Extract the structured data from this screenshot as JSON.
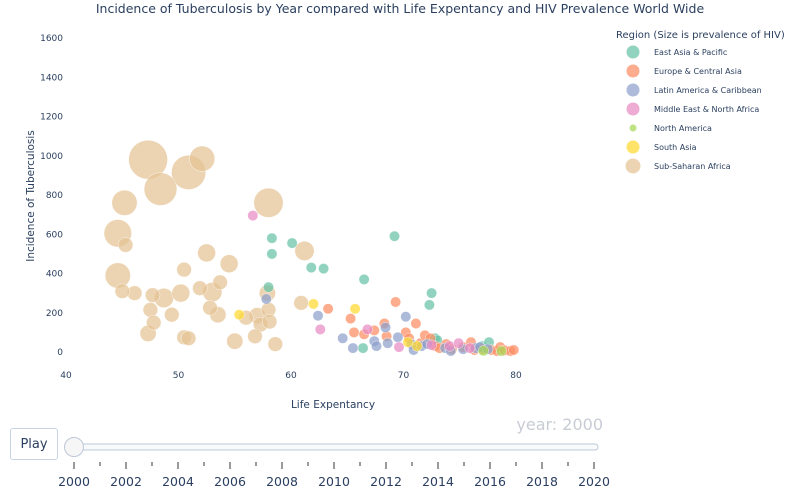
{
  "controls": {
    "play_label": "Play",
    "current_year_label": "year: 2000"
  },
  "slider": {
    "years": [
      "2000",
      "2002",
      "2004",
      "2006",
      "2008",
      "2010",
      "2012",
      "2014",
      "2016",
      "2018",
      "2020"
    ],
    "value": "2000"
  },
  "colors": {
    "East Asia & Pacific": "#66c2a5",
    "Europe & Central Asia": "#fc8d62",
    "Latin America & Caribbean": "#8da0cb",
    "Middle East & North Africa": "#e78ac3",
    "North America": "#a6d854",
    "South Asia": "#ffd92f",
    "Sub-Saharan Africa": "#e5c494"
  },
  "chart_data": {
    "type": "scatter",
    "title": "Incidence of Tuberculosis by Year compared with Life Expentancy and HIV Prevalence World Wide",
    "xlabel": "Life Expentancy",
    "ylabel": "Incidence of Tuberculosis",
    "xlim": [
      40,
      80
    ],
    "ylim": [
      -100,
      1650
    ],
    "xticks": [
      40,
      50,
      60,
      70,
      80
    ],
    "yticks": [
      0,
      200,
      400,
      600,
      800,
      1000,
      1200,
      1400,
      1600
    ],
    "legend_title": "Region (Size is prevalence of HIV)",
    "legend_position": "right",
    "frame_year": 2000,
    "series": [
      {
        "name": "East Asia & Pacific",
        "points": [
          [
            58.3,
            580,
            1
          ],
          [
            60.1,
            555,
            1
          ],
          [
            61.8,
            430,
            1
          ],
          [
            62.9,
            425,
            1
          ],
          [
            58.3,
            500,
            1
          ],
          [
            58.0,
            330,
            1
          ],
          [
            66.5,
            370,
            1
          ],
          [
            69.2,
            590,
            1
          ],
          [
            72.5,
            300,
            1
          ],
          [
            72.3,
            240,
            1
          ],
          [
            66.4,
            20,
            1
          ],
          [
            72.8,
            70,
            1
          ],
          [
            73.0,
            60,
            1
          ],
          [
            77.0,
            30,
            1
          ],
          [
            77.6,
            50,
            1
          ]
        ]
      },
      {
        "name": "Europe & Central Asia",
        "points": [
          [
            63.3,
            220,
            1
          ],
          [
            65.3,
            170,
            1
          ],
          [
            65.6,
            100,
            1
          ],
          [
            66.5,
            90,
            1
          ],
          [
            67.4,
            110,
            1
          ],
          [
            68.3,
            145,
            1
          ],
          [
            68.5,
            80,
            1
          ],
          [
            69.3,
            255,
            1
          ],
          [
            70.2,
            100,
            1
          ],
          [
            70.5,
            70,
            1
          ],
          [
            71.1,
            145,
            1
          ],
          [
            71.5,
            45,
            1
          ],
          [
            71.9,
            85,
            1
          ],
          [
            72.4,
            70,
            1
          ],
          [
            72.8,
            30,
            1
          ],
          [
            73.2,
            20,
            1
          ],
          [
            73.8,
            40,
            1
          ],
          [
            74.3,
            15,
            1
          ],
          [
            75.3,
            25,
            1
          ],
          [
            76.0,
            50,
            1
          ],
          [
            76.3,
            10,
            1
          ],
          [
            77.0,
            15,
            1
          ],
          [
            77.8,
            10,
            1
          ],
          [
            78.3,
            5,
            1
          ],
          [
            78.6,
            25,
            1
          ],
          [
            79.0,
            8,
            1
          ],
          [
            79.5,
            5,
            1
          ],
          [
            79.8,
            10,
            1
          ]
        ]
      },
      {
        "name": "Latin America & Caribbean",
        "points": [
          [
            57.8,
            270,
            1
          ],
          [
            62.4,
            185,
            1
          ],
          [
            64.6,
            70,
            1
          ],
          [
            65.5,
            20,
            1
          ],
          [
            67.4,
            55,
            1
          ],
          [
            67.6,
            30,
            1
          ],
          [
            68.4,
            125,
            1
          ],
          [
            68.6,
            45,
            1
          ],
          [
            69.5,
            75,
            1
          ],
          [
            70.2,
            180,
            1
          ],
          [
            70.7,
            40,
            1
          ],
          [
            70.9,
            10,
            1
          ],
          [
            71.6,
            30,
            1
          ],
          [
            72.1,
            40,
            1
          ],
          [
            73.7,
            20,
            1
          ],
          [
            74.2,
            5,
            1
          ],
          [
            75.3,
            15,
            1
          ],
          [
            76.4,
            20,
            1
          ],
          [
            76.8,
            25,
            1
          ],
          [
            77.5,
            15,
            1
          ]
        ]
      },
      {
        "name": "Middle East & North Africa",
        "points": [
          [
            56.6,
            695,
            1
          ],
          [
            62.6,
            115,
            1
          ],
          [
            66.8,
            115,
            1
          ],
          [
            69.6,
            25,
            1
          ],
          [
            72.5,
            35,
            1
          ],
          [
            74.1,
            30,
            1
          ],
          [
            74.9,
            45,
            1
          ],
          [
            75.9,
            20,
            1
          ]
        ]
      },
      {
        "name": "North America",
        "points": [
          [
            77.1,
            6,
            1
          ],
          [
            78.7,
            5,
            1
          ]
        ]
      },
      {
        "name": "South Asia",
        "points": [
          [
            55.4,
            190,
            1
          ],
          [
            62.0,
            245,
            1
          ],
          [
            65.7,
            220,
            1
          ],
          [
            70.4,
            50,
            1
          ],
          [
            71.2,
            30,
            1
          ]
        ]
      },
      {
        "name": "Sub-Saharan Africa",
        "points": [
          [
            47.3,
            980,
            14
          ],
          [
            48.4,
            830,
            10
          ],
          [
            50.9,
            915,
            11
          ],
          [
            52.1,
            985,
            6
          ],
          [
            45.2,
            760,
            6
          ],
          [
            58.0,
            760,
            8
          ],
          [
            44.6,
            605,
            7
          ],
          [
            45.3,
            545,
            2
          ],
          [
            44.6,
            390,
            6
          ],
          [
            48.7,
            275,
            3.5
          ],
          [
            46.1,
            300,
            2
          ],
          [
            45.0,
            310,
            2
          ],
          [
            47.7,
            290,
            2
          ],
          [
            47.5,
            215,
            2
          ],
          [
            47.8,
            150,
            2
          ],
          [
            47.3,
            95,
            2.5
          ],
          [
            50.2,
            300,
            3
          ],
          [
            50.5,
            420,
            2
          ],
          [
            51.9,
            325,
            2
          ],
          [
            52.5,
            505,
            3
          ],
          [
            54.5,
            450,
            3
          ],
          [
            53.7,
            355,
            2
          ],
          [
            52.8,
            225,
            2
          ],
          [
            53.0,
            305,
            3.5
          ],
          [
            53.5,
            190,
            2.5
          ],
          [
            49.4,
            190,
            2
          ],
          [
            50.5,
            75,
            2
          ],
          [
            50.9,
            70,
            2
          ],
          [
            55.0,
            55,
            2.5
          ],
          [
            56.0,
            175,
            2
          ],
          [
            57.0,
            185,
            2.5
          ],
          [
            57.3,
            140,
            2
          ],
          [
            58.6,
            40,
            2
          ],
          [
            56.8,
            80,
            2
          ],
          [
            58.0,
            215,
            2
          ],
          [
            58.1,
            155,
            2
          ],
          [
            57.9,
            300,
            2.5
          ],
          [
            61.2,
            515,
            3.5
          ],
          [
            60.9,
            250,
            2
          ]
        ]
      }
    ]
  }
}
